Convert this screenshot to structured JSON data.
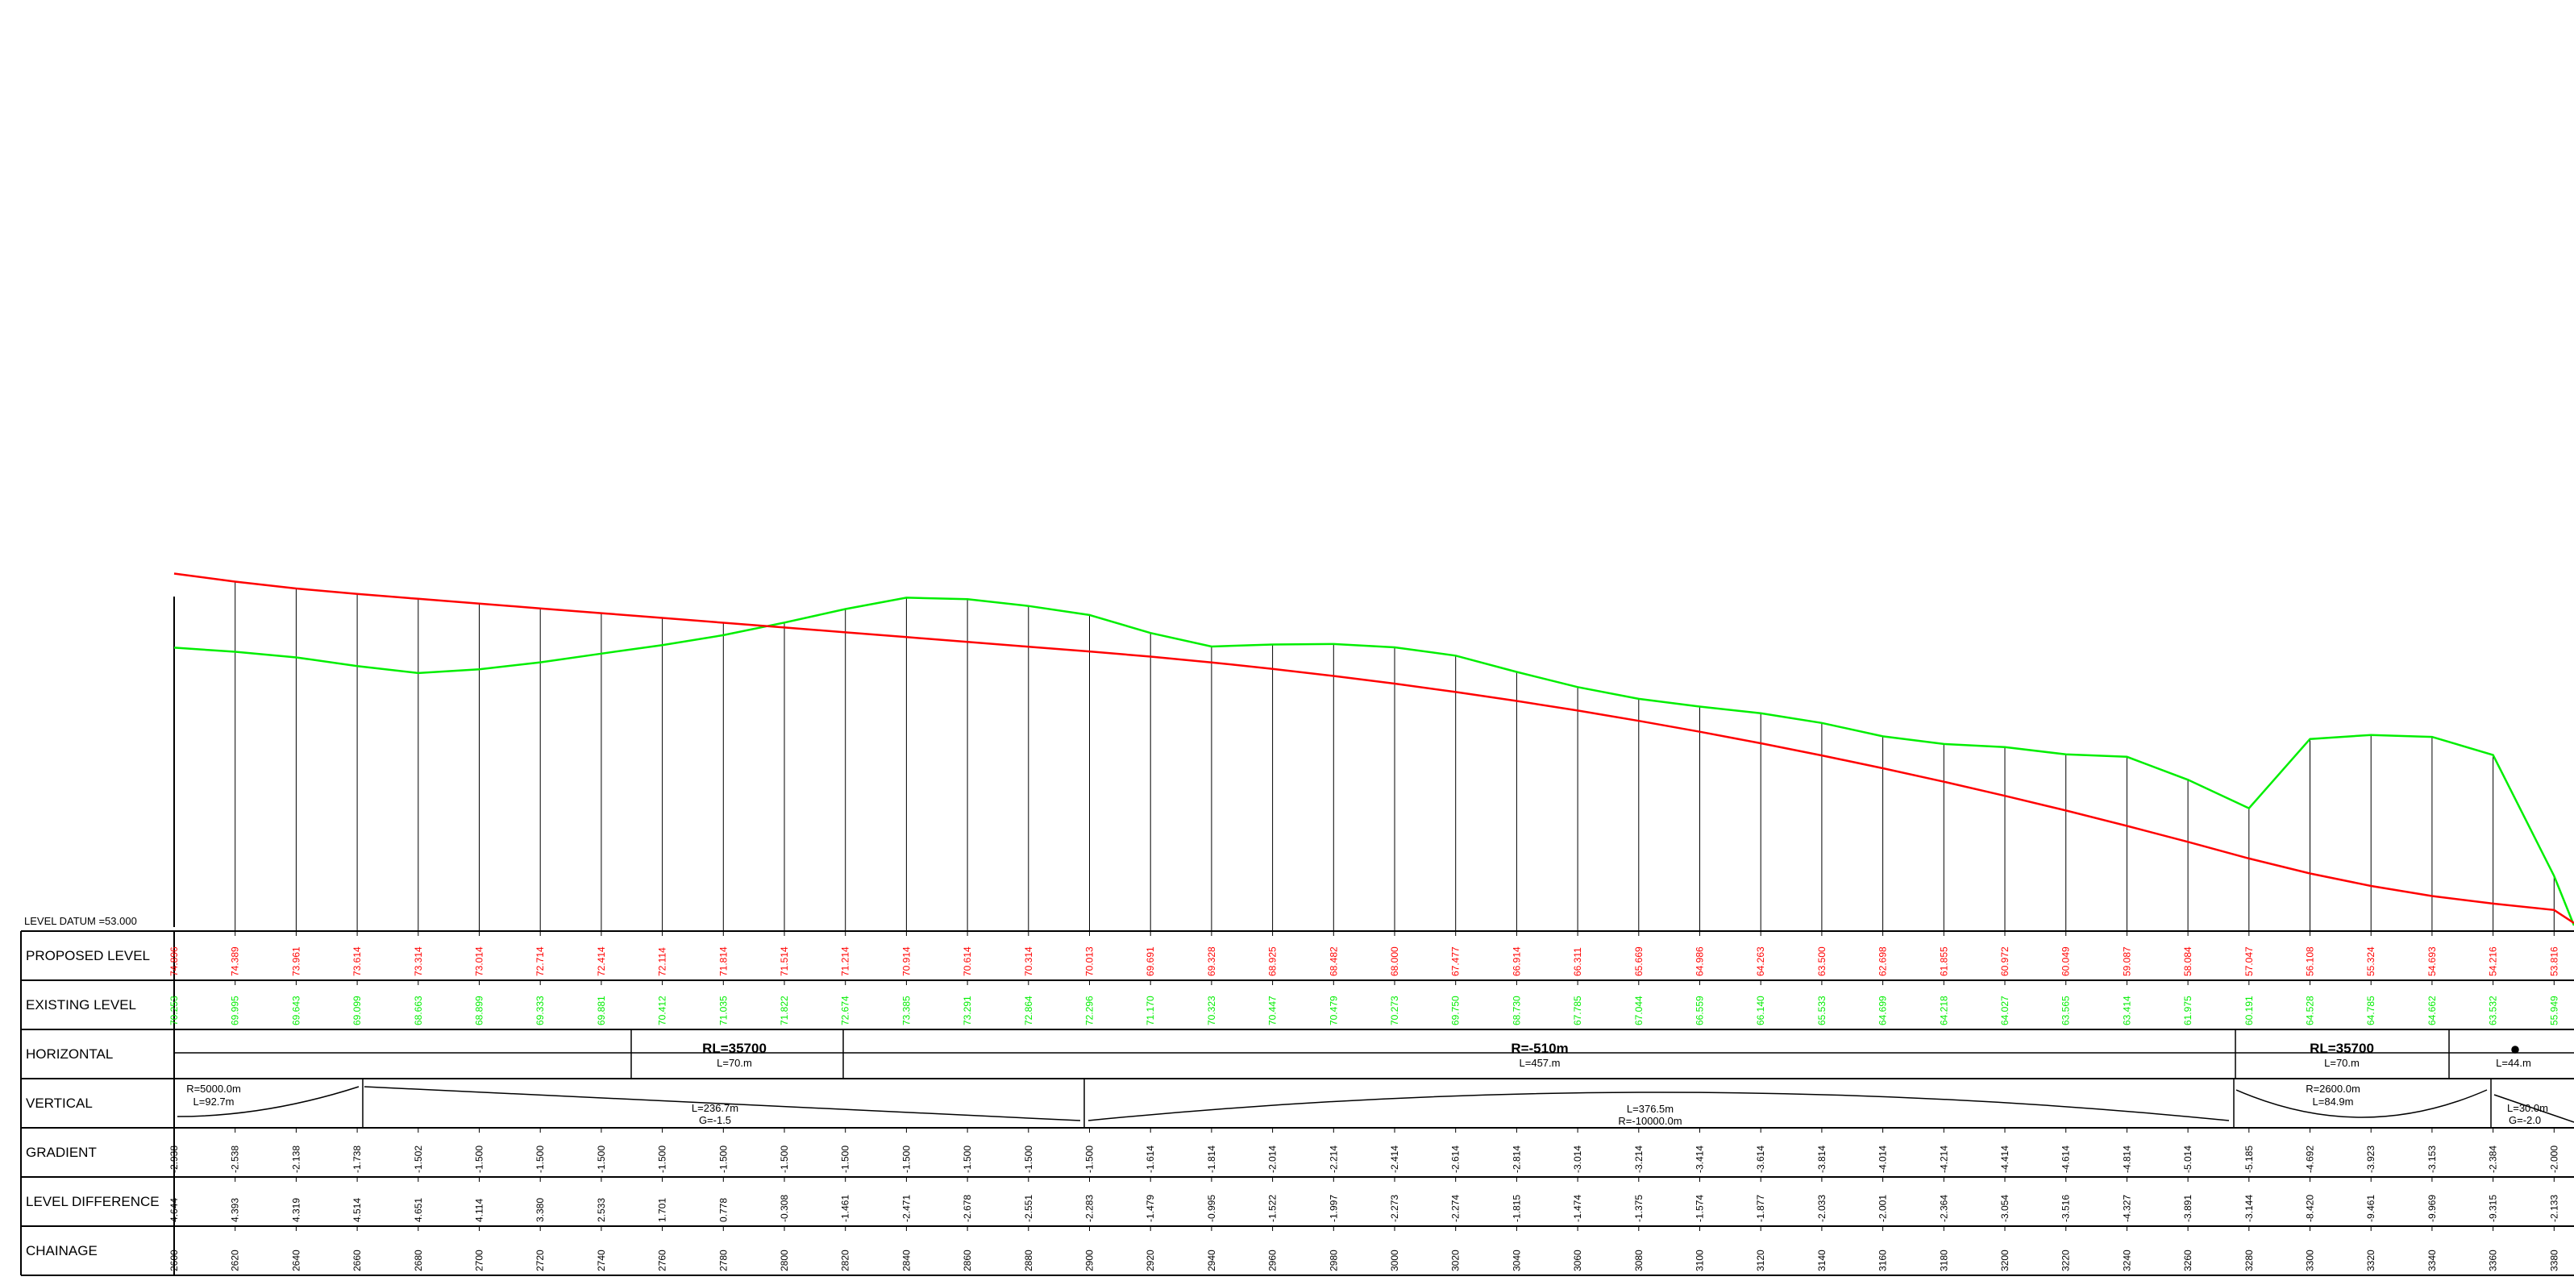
{
  "datum_label": "LEVEL DATUM =53.000",
  "row_labels": {
    "proposed": "PROPOSED LEVEL",
    "existing": "EXISTING LEVEL",
    "horizontal": "HORIZONTAL",
    "vertical": "VERTICAL",
    "gradient": "GRADIENT",
    "level_difference": "LEVEL DIFFERENCE",
    "chainage": "CHAINAGE"
  },
  "colors": {
    "proposed": "#ff0000",
    "existing": "#00ee00",
    "lines": "#000000"
  },
  "chart_data": {
    "type": "line",
    "datum": 53.0,
    "chainage": [
      2600,
      2620,
      2640,
      2660,
      2680,
      2700,
      2720,
      2740,
      2760,
      2780,
      2800,
      2820,
      2840,
      2860,
      2880,
      2900,
      2920,
      2940,
      2960,
      2980,
      3000,
      3020,
      3040,
      3060,
      3080,
      3100,
      3120,
      3140,
      3160,
      3180,
      3200,
      3220,
      3240,
      3260,
      3280,
      3300,
      3320,
      3340,
      3360,
      3380
    ],
    "proposed_level": [
      "74.896",
      "74.389",
      "73.961",
      "73.614",
      "73.314",
      "73.014",
      "72.714",
      "72.414",
      "72.114",
      "71.814",
      "71.514",
      "71.214",
      "70.914",
      "70.614",
      "70.314",
      "70.013",
      "69.691",
      "69.328",
      "68.925",
      "68.482",
      "68.000",
      "67.477",
      "66.914",
      "66.311",
      "65.669",
      "64.986",
      "64.263",
      "63.500",
      "62.698",
      "61.855",
      "60.972",
      "60.049",
      "59.087",
      "58.084",
      "57.047",
      "56.108",
      "55.324",
      "54.693",
      "54.216",
      "53.816"
    ],
    "existing_level": [
      "70.253",
      "69.995",
      "69.643",
      "69.099",
      "68.663",
      "68.899",
      "69.333",
      "69.881",
      "70.412",
      "71.035",
      "71.822",
      "72.674",
      "73.385",
      "73.291",
      "72.864",
      "72.296",
      "71.170",
      "70.323",
      "70.447",
      "70.479",
      "70.273",
      "69.750",
      "68.730",
      "67.785",
      "67.044",
      "66.559",
      "66.140",
      "65.533",
      "64.699",
      "64.218",
      "64.027",
      "63.565",
      "63.414",
      "61.975",
      "60.191",
      "64.528",
      "64.785",
      "64.662",
      "63.532",
      "55.949"
    ],
    "gradient": [
      "-2.938",
      "-2.538",
      "-2.138",
      "-1.738",
      "-1.502",
      "-1.500",
      "-1.500",
      "-1.500",
      "-1.500",
      "-1.500",
      "-1.500",
      "-1.500",
      "-1.500",
      "-1.500",
      "-1.500",
      "-1.500",
      "-1.614",
      "-1.814",
      "-2.014",
      "-2.214",
      "-2.414",
      "-2.614",
      "-2.814",
      "-3.014",
      "-3.214",
      "-3.414",
      "-3.614",
      "-3.814",
      "-4.014",
      "-4.214",
      "-4.414",
      "-4.614",
      "-4.814",
      "-5.014",
      "-5.185",
      "-4.692",
      "-3.923",
      "-3.153",
      "-2.384",
      "-2.000"
    ],
    "level_difference": [
      "4.644",
      "4.393",
      "4.319",
      "4.514",
      "4.651",
      "4.114",
      "3.380",
      "2.533",
      "1.701",
      "0.778",
      "-0.308",
      "-1.461",
      "-2.471",
      "-2.678",
      "-2.551",
      "-2.283",
      "-1.479",
      "-0.995",
      "-1.522",
      "-1.997",
      "-2.273",
      "-2.274",
      "-1.815",
      "-1.474",
      "-1.375",
      "-1.574",
      "-1.877",
      "-2.033",
      "-2.001",
      "-2.364",
      "-3.054",
      "-3.516",
      "-4.327",
      "-3.891",
      "-3.144",
      "-8.420",
      "-9.461",
      "-9.969",
      "-9.315",
      "-2.133"
    ],
    "horizontal_elements": [
      {
        "label": "RL=35700",
        "length": "L=70.m"
      },
      {
        "label": "R=-510m",
        "length": "L=457.m"
      },
      {
        "label": "RL=35700",
        "length": "L=70.m"
      },
      {
        "label": "",
        "length": "L=44.m"
      }
    ],
    "vertical_elements": [
      {
        "line1": "R=5000.0m",
        "line2": "L=92.7m"
      },
      {
        "line1": "L=236.7m",
        "line2": "G=-1.5"
      },
      {
        "line1": "L=376.5m",
        "line2": "R=-10000.0m"
      },
      {
        "line1": "R=2600.0m",
        "line2": "L=84.9m"
      },
      {
        "line1": "L=30.0m",
        "line2": "G=-2.0"
      }
    ]
  }
}
